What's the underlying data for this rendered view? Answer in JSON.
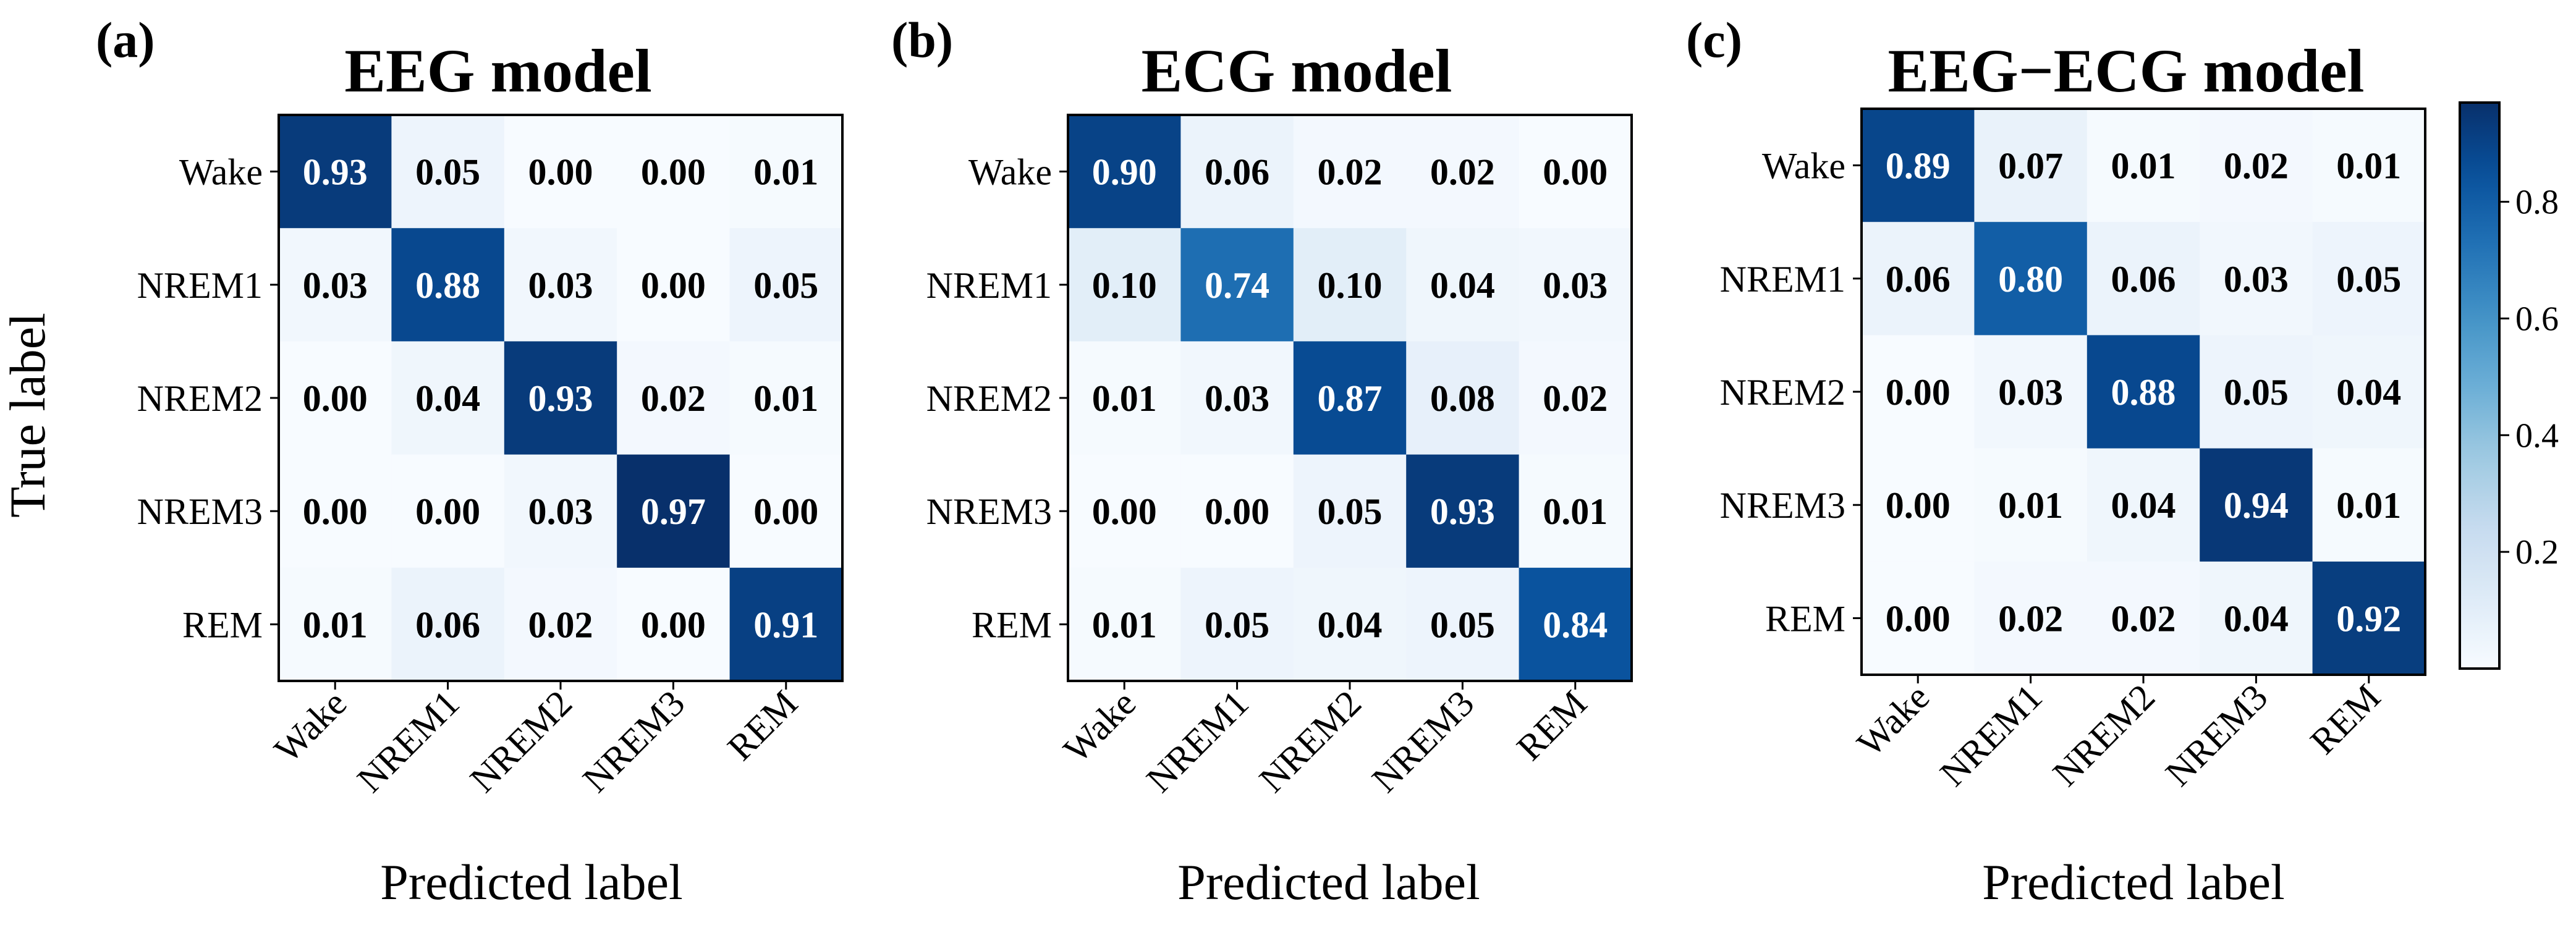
{
  "chart_data": [
    {
      "type": "heatmap",
      "panel": "(a)",
      "title": "EEG model",
      "xlabel": "Predicted label",
      "ylabel": "True label",
      "x_categories": [
        "Wake",
        "NREM1",
        "NREM2",
        "NREM3",
        "REM"
      ],
      "y_categories": [
        "Wake",
        "NREM1",
        "NREM2",
        "NREM3",
        "REM"
      ],
      "values": [
        [
          0.93,
          0.05,
          0.0,
          0.0,
          0.01
        ],
        [
          0.03,
          0.88,
          0.03,
          0.0,
          0.05
        ],
        [
          0.0,
          0.04,
          0.93,
          0.02,
          0.01
        ],
        [
          0.0,
          0.0,
          0.03,
          0.97,
          0.0
        ],
        [
          0.01,
          0.06,
          0.02,
          0.0,
          0.91
        ]
      ]
    },
    {
      "type": "heatmap",
      "panel": "(b)",
      "title": "ECG model",
      "xlabel": "Predicted label",
      "ylabel": "",
      "x_categories": [
        "Wake",
        "NREM1",
        "NREM2",
        "NREM3",
        "REM"
      ],
      "y_categories": [
        "Wake",
        "NREM1",
        "NREM2",
        "NREM3",
        "REM"
      ],
      "values": [
        [
          0.9,
          0.06,
          0.02,
          0.02,
          0.0
        ],
        [
          0.1,
          0.74,
          0.1,
          0.04,
          0.03
        ],
        [
          0.01,
          0.03,
          0.87,
          0.08,
          0.02
        ],
        [
          0.0,
          0.0,
          0.05,
          0.93,
          0.01
        ],
        [
          0.01,
          0.05,
          0.04,
          0.05,
          0.84
        ]
      ]
    },
    {
      "type": "heatmap",
      "panel": "(c)",
      "title": "EEG−ECG model",
      "xlabel": "Predicted label",
      "ylabel": "",
      "x_categories": [
        "Wake",
        "NREM1",
        "NREM2",
        "NREM3",
        "REM"
      ],
      "y_categories": [
        "Wake",
        "NREM1",
        "NREM2",
        "NREM3",
        "REM"
      ],
      "values": [
        [
          0.89,
          0.07,
          0.01,
          0.02,
          0.01
        ],
        [
          0.06,
          0.8,
          0.06,
          0.03,
          0.05
        ],
        [
          0.0,
          0.03,
          0.88,
          0.05,
          0.04
        ],
        [
          0.0,
          0.01,
          0.04,
          0.94,
          0.01
        ],
        [
          0.0,
          0.02,
          0.02,
          0.04,
          0.92
        ]
      ]
    }
  ],
  "colorbar": {
    "colormap": "Blues",
    "range": [
      0.0,
      0.97
    ],
    "ticks": [
      0.2,
      0.4,
      0.6,
      0.8
    ],
    "tick_labels": [
      "0.2",
      "0.4",
      "0.6",
      "0.8"
    ]
  },
  "colors": {
    "text_dark": "#000000",
    "text_light": "#ffffff",
    "frame": "#000000"
  }
}
